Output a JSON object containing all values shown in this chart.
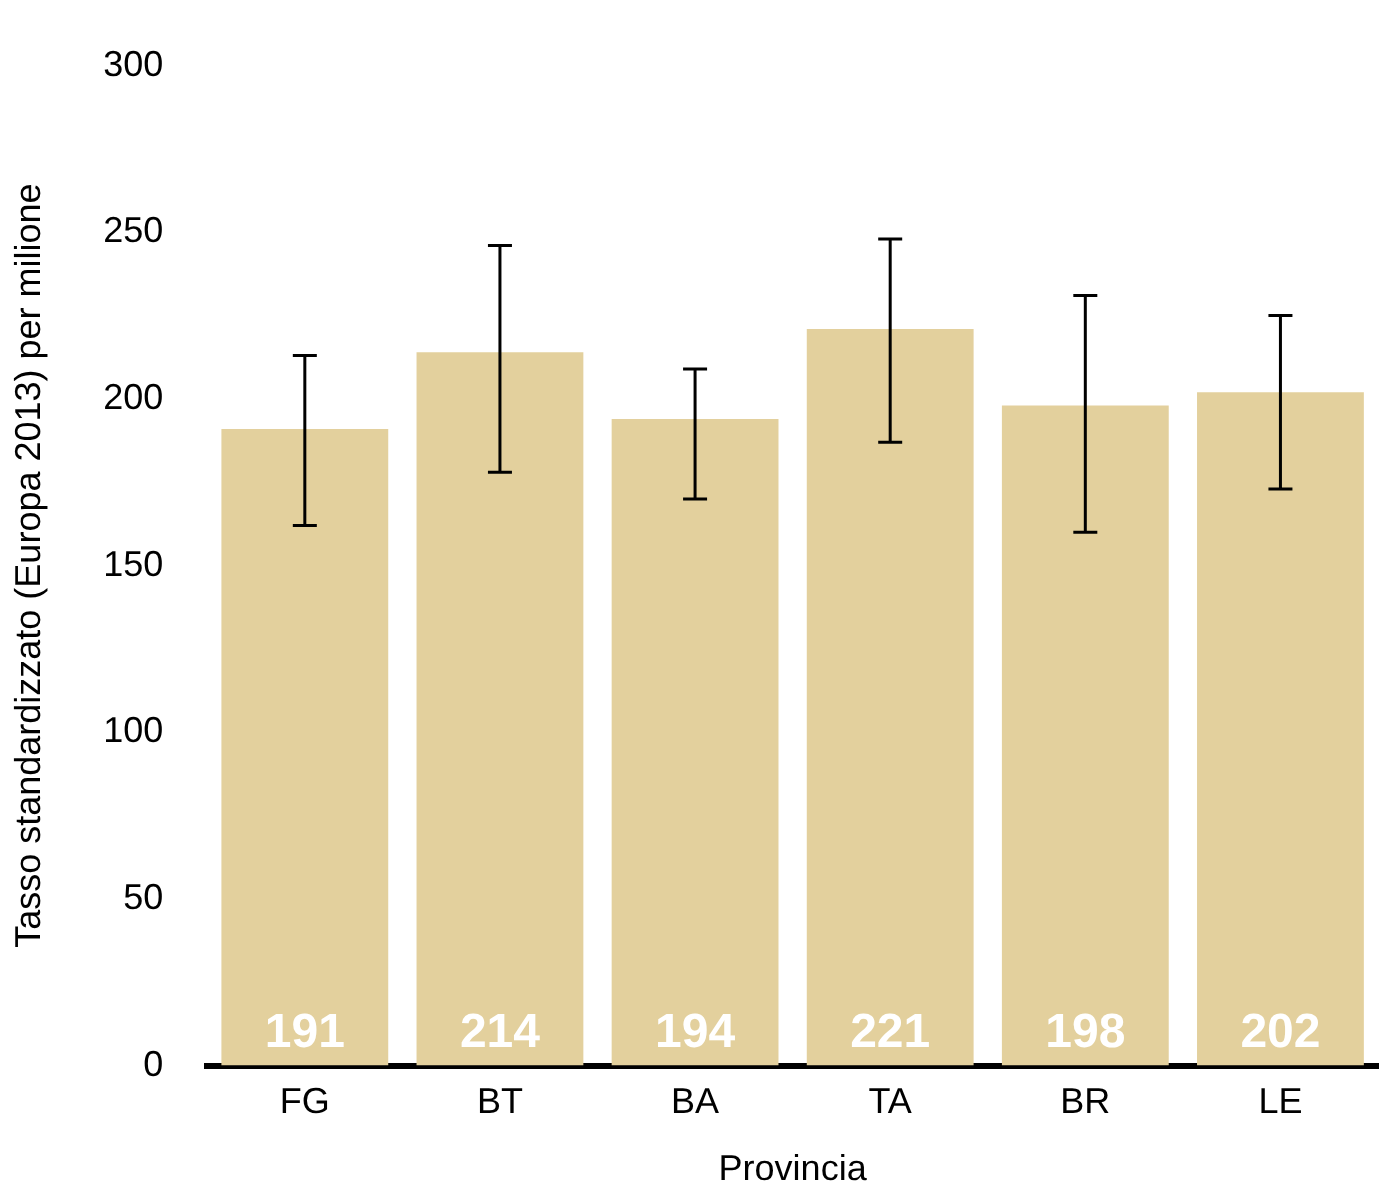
{
  "chart_data": {
    "type": "bar",
    "xlabel": "Provincia",
    "ylabel": "Tasso standardizzato (Europa 2013) per milione",
    "categories": [
      "FG",
      "BT",
      "BA",
      "TA",
      "BR",
      "LE"
    ],
    "values": [
      191,
      214,
      194,
      221,
      198,
      202
    ],
    "errors": [
      [
        162,
        213
      ],
      [
        178,
        246
      ],
      [
        170,
        209
      ],
      [
        187,
        248
      ],
      [
        160,
        231
      ],
      [
        173,
        225
      ]
    ],
    "color": "#e3d09d",
    "ylim": [
      0,
      300
    ],
    "yticks": [
      0,
      50,
      100,
      150,
      200,
      250,
      300
    ],
    "grid": false,
    "legend": false,
    "data_labels": true
  }
}
